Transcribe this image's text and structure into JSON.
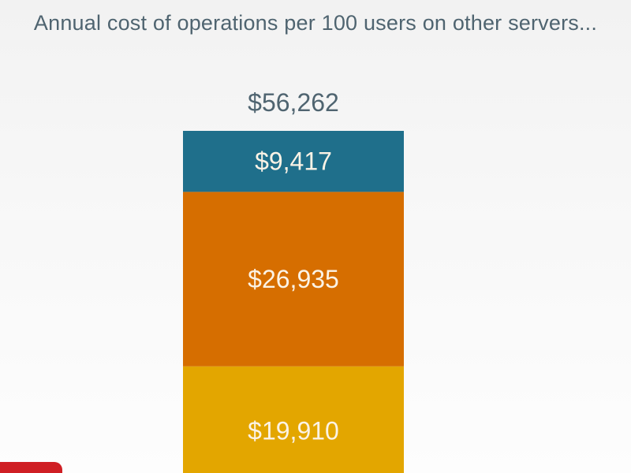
{
  "chart_data": {
    "type": "bar",
    "stacked": true,
    "title": "Annual cost of operations per 100 users on other servers...",
    "categories": [
      ""
    ],
    "total_label": "$56,262",
    "total": 56262,
    "series": [
      {
        "label": "$19,910",
        "values": [
          19910
        ],
        "color": "#e3a600"
      },
      {
        "label": "$26,935",
        "values": [
          26935
        ],
        "color": "#d66e00"
      },
      {
        "label": "$9,417",
        "values": [
          9417
        ],
        "color": "#1f6f8b"
      }
    ],
    "xlabel": "",
    "ylabel": "",
    "grid": false
  },
  "colors": {
    "title_text": "#4f6470",
    "segment_label": "#fbf3e6",
    "corner_tab": "#cf1f24"
  }
}
